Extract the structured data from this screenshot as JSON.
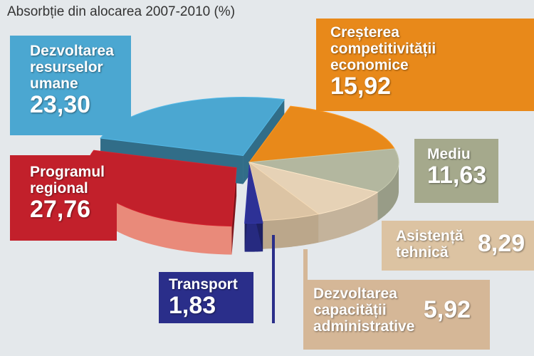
{
  "chart_data": {
    "type": "pie",
    "title": "Absorbție din alocarea 2007-2010 (%)",
    "slices": [
      {
        "label": "Creșterea competitivității economice",
        "value": 15.92,
        "display": "15,92",
        "color": "#e8891a",
        "box_color": "#e8891a"
      },
      {
        "label": "Mediu",
        "value": 11.63,
        "display": "11,63",
        "color": "#b3b79f",
        "box_color": "#a5a98c"
      },
      {
        "label": "Asistență tehnică",
        "value": 8.29,
        "display": "8,29",
        "color": "#e6d2b6",
        "box_color": "#dcc3a2"
      },
      {
        "label": "Dezvoltarea capacității administrative",
        "value": 5.92,
        "display": "5,92",
        "color": "#dcc4a4",
        "box_color": "#d5b797"
      },
      {
        "label": "Transport",
        "value": 1.83,
        "display": "1,83",
        "color": "#2d3196",
        "box_color": "#2a2e8a"
      },
      {
        "label": "Programul regional",
        "value": 27.76,
        "display": "27,76",
        "color": "#c2202b",
        "box_color": "#c2202b"
      },
      {
        "label": "Dezvoltarea resurselor umane",
        "value": 23.3,
        "display": "23,30",
        "color": "#4ba7d1",
        "box_color": "#4ba7d1"
      }
    ]
  },
  "labels": {
    "cre_l1": "Creșterea",
    "cre_l2": "competitivității",
    "cre_l3": "economice",
    "med_l1": "Mediu",
    "asi_l1": "Asistență",
    "asi_l2": "tehnică",
    "dca_l1": "Dezvoltarea",
    "dca_l2": "capacității",
    "dca_l3": "administrative",
    "tra_l1": "Transport",
    "reg_l1": "Programul",
    "reg_l2": "regional",
    "dru_l1": "Dezvoltarea",
    "dru_l2": "resurselor",
    "dru_l3": "umane"
  }
}
